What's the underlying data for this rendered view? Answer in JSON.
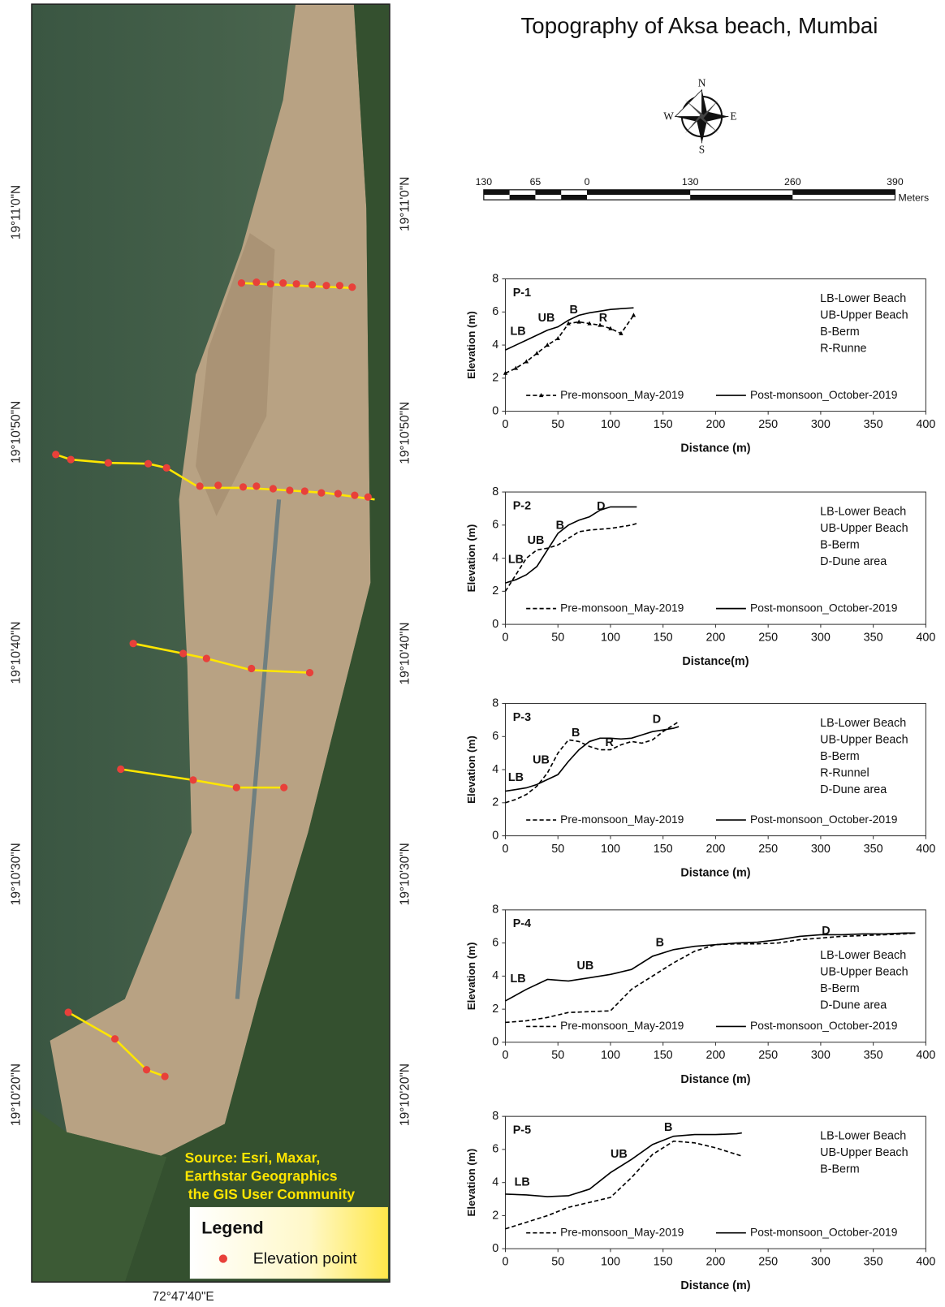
{
  "title": "Topography of Aksa beach, Mumbai",
  "compass": [
    "N",
    "E",
    "S",
    "W"
  ],
  "scale_bar": {
    "labels": [
      "130",
      "65",
      "0",
      "130",
      "260",
      "390"
    ],
    "unit": "Meters"
  },
  "map": {
    "lat_labels": [
      "19°11'0\"N",
      "19°10'50\"N",
      "19°10'40\"N",
      "19°10'30\"N",
      "19°10'20\"N"
    ],
    "lon_label": "72°47'40\"E",
    "source": [
      "Source: Esri, Maxar,",
      "Earthstar Geographics",
      "the GIS User Community"
    ],
    "legend_title": "Legend",
    "legend_entry": "Elevation point"
  },
  "chart_data": [
    {
      "type": "line",
      "label": "P-1",
      "x_label": "Distance (m)",
      "y_label": "Elevation (m)",
      "x": [
        0,
        10,
        20,
        30,
        40,
        50,
        60,
        70,
        80,
        90,
        100,
        110,
        122
      ],
      "series": [
        {
          "name": "Pre-monsoon_May-2019",
          "color": "#000000",
          "style": "dashed",
          "marker": "triangle",
          "values": [
            2.3,
            2.6,
            3.0,
            3.5,
            4.0,
            4.4,
            5.3,
            5.4,
            5.3,
            5.2,
            5.0,
            4.7,
            5.8
          ]
        },
        {
          "name": "Post-monsoon_October-2019",
          "color": "#000000",
          "style": "solid",
          "values": [
            3.7,
            4.0,
            4.3,
            4.6,
            4.9,
            5.1,
            5.5,
            5.8,
            5.95,
            6.05,
            6.15,
            6.2,
            6.25
          ]
        }
      ],
      "annotations": [
        {
          "text": "LB",
          "x": 12,
          "y": 4.8
        },
        {
          "text": "UB",
          "x": 39,
          "y": 5.6
        },
        {
          "text": "B",
          "x": 65,
          "y": 6.1
        },
        {
          "text": "R",
          "x": 93,
          "y": 5.6
        }
      ],
      "notes": [
        "LB-Lower Beach",
        "UB-Upper Beach",
        "B-Berm",
        "R-Runne"
      ],
      "xlim": [
        0,
        400
      ],
      "ylim": [
        0,
        8
      ],
      "xticks": [
        0,
        50,
        100,
        150,
        200,
        250,
        300,
        350,
        400
      ],
      "yticks": [
        0,
        2,
        4,
        6,
        8
      ]
    },
    {
      "type": "line",
      "label": "P-2",
      "x_label": "Distance(m)",
      "y_label": "Elevation (m)",
      "x": [
        0,
        10,
        20,
        30,
        40,
        50,
        60,
        70,
        80,
        90,
        100,
        110,
        120,
        125
      ],
      "series": [
        {
          "name": "Pre-monsoon_May-2019",
          "color": "#000000",
          "style": "dashed",
          "values": [
            2.0,
            3.0,
            4.0,
            4.5,
            4.6,
            4.8,
            5.2,
            5.6,
            5.7,
            5.75,
            5.8,
            5.9,
            6.0,
            6.1
          ]
        },
        {
          "name": "Post-monsoon_October-2019",
          "color": "#000000",
          "style": "solid",
          "values": [
            2.5,
            2.7,
            3.0,
            3.5,
            4.5,
            5.5,
            6.0,
            6.3,
            6.5,
            6.9,
            7.1,
            7.1,
            7.1,
            7.1
          ]
        }
      ],
      "annotations": [
        {
          "text": "LB",
          "x": 10,
          "y": 3.9
        },
        {
          "text": "UB",
          "x": 29,
          "y": 5.05
        },
        {
          "text": "B",
          "x": 52,
          "y": 5.95
        },
        {
          "text": "D",
          "x": 91,
          "y": 7.1
        }
      ],
      "notes": [
        "LB-Lower Beach",
        "UB-Upper Beach",
        "B-Berm",
        "D-Dune area"
      ],
      "xlim": [
        0,
        400
      ],
      "ylim": [
        0,
        8
      ],
      "xticks": [
        0,
        50,
        100,
        150,
        200,
        250,
        300,
        350,
        400
      ],
      "yticks": [
        0,
        2,
        4,
        6,
        8
      ]
    },
    {
      "type": "line",
      "label": "P-3",
      "x_label": "Distance (m)",
      "y_label": "Elevation (m)",
      "x": [
        0,
        10,
        20,
        30,
        40,
        50,
        60,
        70,
        80,
        90,
        100,
        110,
        120,
        130,
        140,
        150,
        160,
        165
      ],
      "series": [
        {
          "name": "Pre-monsoon_May-2019",
          "color": "#000000",
          "style": "dashed",
          "values": [
            2.0,
            2.2,
            2.5,
            3.0,
            3.8,
            5.0,
            5.8,
            5.7,
            5.4,
            5.2,
            5.2,
            5.5,
            5.7,
            5.6,
            5.8,
            6.3,
            6.7,
            6.9
          ]
        },
        {
          "name": "Post-monsoon_October-2019",
          "color": "#000000",
          "style": "solid",
          "values": [
            2.7,
            2.8,
            2.9,
            3.1,
            3.4,
            3.7,
            4.5,
            5.2,
            5.7,
            5.9,
            5.9,
            5.85,
            5.9,
            6.1,
            6.3,
            6.4,
            6.5,
            6.6
          ]
        }
      ],
      "annotations": [
        {
          "text": "LB",
          "x": 10,
          "y": 3.5
        },
        {
          "text": "UB",
          "x": 34,
          "y": 4.55
        },
        {
          "text": "B",
          "x": 67,
          "y": 6.2
        },
        {
          "text": "R",
          "x": 99,
          "y": 5.6
        },
        {
          "text": "D",
          "x": 144,
          "y": 7.0
        }
      ],
      "notes": [
        "LB-Lower Beach",
        "UB-Upper Beach",
        "B-Berm",
        "R-Runnel",
        "D-Dune area"
      ],
      "xlim": [
        0,
        400
      ],
      "ylim": [
        0,
        8
      ],
      "xticks": [
        0,
        50,
        100,
        150,
        200,
        250,
        300,
        350,
        400
      ],
      "yticks": [
        0,
        2,
        4,
        6,
        8
      ]
    },
    {
      "type": "line",
      "label": "P-4",
      "x_label": "Distance (m)",
      "y_label": "Elevation (m)",
      "x": [
        0,
        20,
        40,
        60,
        80,
        100,
        120,
        140,
        160,
        180,
        200,
        220,
        240,
        260,
        280,
        300,
        320,
        340,
        360,
        380,
        390
      ],
      "series": [
        {
          "name": "Pre-monsoon_May-2019",
          "color": "#000000",
          "style": "dashed",
          "values": [
            1.2,
            1.3,
            1.5,
            1.8,
            1.85,
            1.9,
            3.2,
            4.0,
            4.8,
            5.5,
            5.9,
            5.95,
            5.95,
            6.0,
            6.2,
            6.3,
            6.4,
            6.45,
            6.5,
            6.55,
            6.6
          ]
        },
        {
          "name": "Post-monsoon_October-2019",
          "color": "#000000",
          "style": "solid",
          "values": [
            2.5,
            3.2,
            3.8,
            3.7,
            3.9,
            4.1,
            4.4,
            5.2,
            5.6,
            5.8,
            5.9,
            6.0,
            6.05,
            6.2,
            6.4,
            6.5,
            6.5,
            6.55,
            6.55,
            6.6,
            6.6
          ]
        }
      ],
      "annotations": [
        {
          "text": "LB",
          "x": 12,
          "y": 3.8
        },
        {
          "text": "UB",
          "x": 76,
          "y": 4.6
        },
        {
          "text": "B",
          "x": 147,
          "y": 6.0
        },
        {
          "text": "D",
          "x": 305,
          "y": 6.7
        }
      ],
      "notes": [
        "LB-Lower Beach",
        "UB-Upper Beach",
        "B-Berm",
        "D-Dune area"
      ],
      "xlim": [
        0,
        400
      ],
      "ylim": [
        0,
        8
      ],
      "xticks": [
        0,
        50,
        100,
        150,
        200,
        250,
        300,
        350,
        400
      ],
      "yticks": [
        0,
        2,
        4,
        6,
        8
      ]
    },
    {
      "type": "line",
      "label": "P-5",
      "x_label": "Distance (m)",
      "y_label": "Elevation (m)",
      "x": [
        0,
        20,
        40,
        60,
        80,
        100,
        120,
        140,
        160,
        180,
        200,
        220,
        225
      ],
      "series": [
        {
          "name": "Pre-monsoon_May-2019",
          "color": "#000000",
          "style": "dashed",
          "values": [
            1.2,
            1.6,
            2.0,
            2.5,
            2.8,
            3.1,
            4.3,
            5.7,
            6.5,
            6.4,
            6.1,
            5.7,
            5.6
          ]
        },
        {
          "name": "Post-monsoon_October-2019",
          "color": "#000000",
          "style": "solid",
          "values": [
            3.3,
            3.25,
            3.15,
            3.2,
            3.6,
            4.6,
            5.4,
            6.3,
            6.8,
            6.9,
            6.9,
            6.95,
            7.0
          ]
        }
      ],
      "annotations": [
        {
          "text": "LB",
          "x": 16,
          "y": 4.0
        },
        {
          "text": "UB",
          "x": 108,
          "y": 5.7
        },
        {
          "text": "B",
          "x": 155,
          "y": 7.3
        }
      ],
      "notes": [
        "LB-Lower Beach",
        "UB-Upper Beach",
        "B-Berm"
      ],
      "xlim": [
        0,
        400
      ],
      "ylim": [
        0,
        8
      ],
      "xticks": [
        0,
        50,
        100,
        150,
        200,
        250,
        300,
        350,
        400
      ],
      "yticks": [
        0,
        2,
        4,
        6,
        8
      ]
    }
  ]
}
